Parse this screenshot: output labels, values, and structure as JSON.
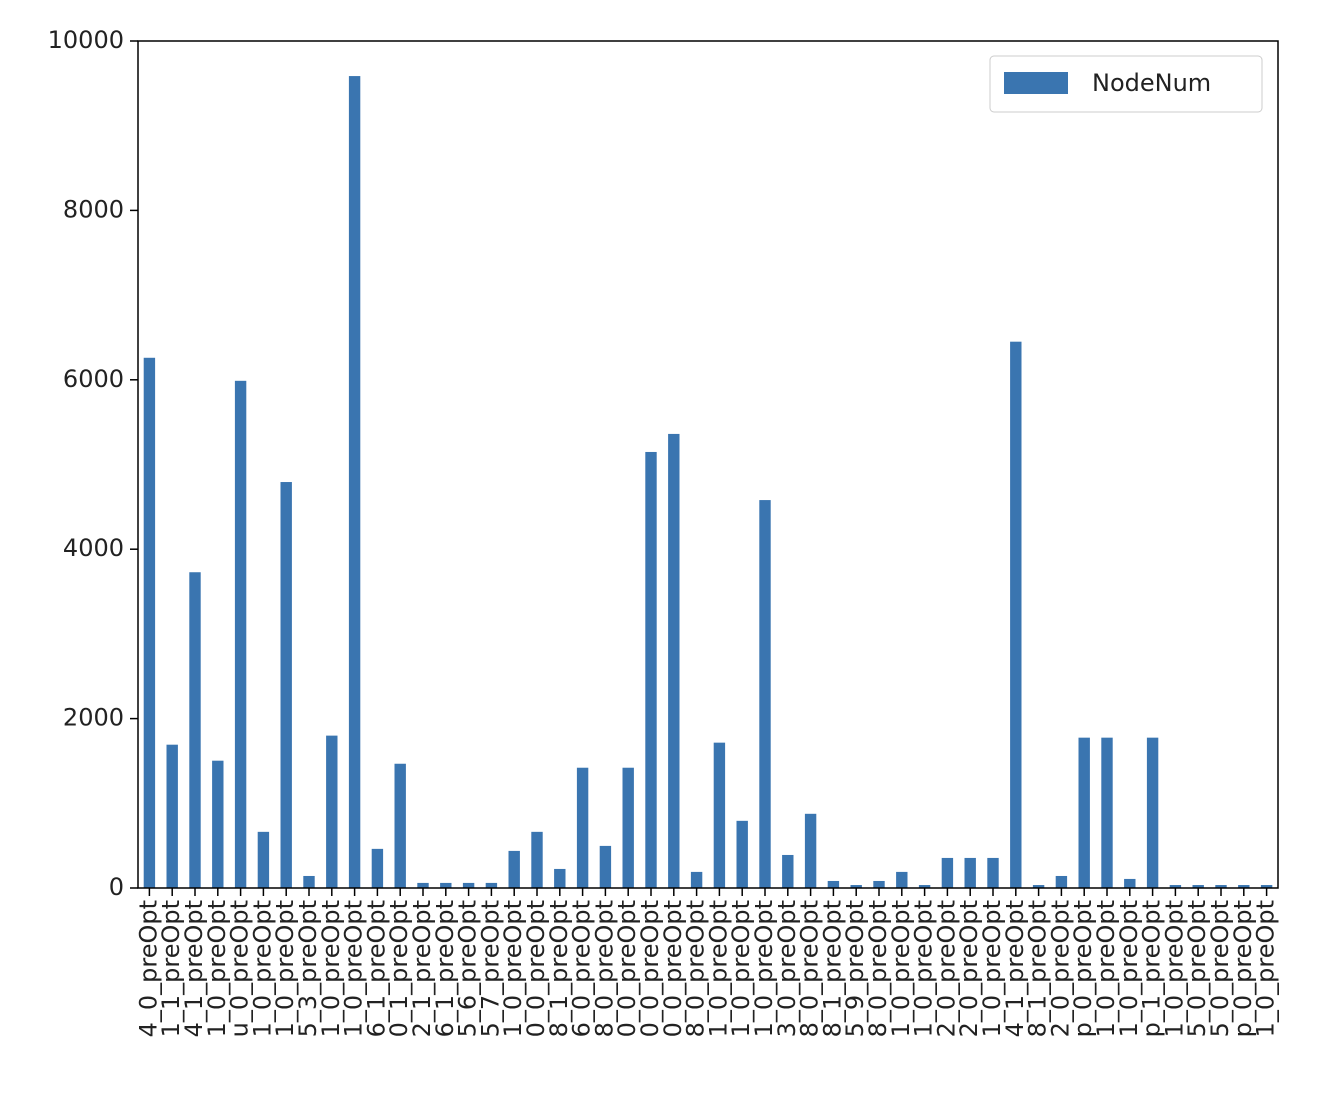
{
  "chart_data": {
    "type": "bar",
    "categories": [
      "4_0_preOpt",
      "1_1_preOpt",
      "4_1_preOpt",
      "1_0_preOpt",
      "u_0_preOpt",
      "1_0_preOpt",
      "1_0_preOpt",
      "5_3_preOpt",
      "1_0_preOpt",
      "1_0_preOpt",
      "6_1_preOpt",
      "0_1_preOpt",
      "2_1_preOpt",
      "6_1_preOpt",
      "5_6_preOpt",
      "5_7_preOpt",
      "1_0_preOpt",
      "0_0_preOpt",
      "8_1_preOpt",
      "6_0_preOpt",
      "8_0_preOpt",
      "0_0_preOpt",
      "0_0_preOpt",
      "0_0_preOpt",
      "8_0_preOpt",
      "1_0_preOpt",
      "1_0_preOpt",
      "1_0_preOpt",
      "3_0_preOpt",
      "8_0_preOpt",
      "8_1_preOpt",
      "5_9_preOpt",
      "8_0_preOpt",
      "1_0_preOpt",
      "1_0_preOpt",
      "2_0_preOpt",
      "2_0_preOpt",
      "1_0_preOpt",
      "4_1_preOpt",
      "8_1_preOpt",
      "2_0_preOpt",
      "p_0_preOpt",
      "1_0_preOpt",
      "1_0_preOpt",
      "p_1_preOpt",
      "1_0_preOpt",
      "5_0_preOpt",
      "5_0_preOpt",
      "p_0_preOpt",
      "1_0_preOpt"
    ],
    "series": [
      {
        "name": "NodeNum",
        "color": "#3a75b0",
        "values": [
          6260,
          1692,
          3728,
          1503,
          5988,
          663,
          4793,
          142,
          1799,
          9586,
          462,
          1467,
          60,
          60,
          60,
          60,
          438,
          663,
          225,
          1420,
          497,
          1420,
          5148,
          5361,
          190,
          1716,
          793,
          4580,
          390,
          876,
          83,
          35,
          83,
          190,
          35,
          355,
          355,
          355,
          6450,
          35,
          142,
          1775,
          1775,
          107,
          1775,
          35,
          35,
          35,
          35,
          35
        ]
      }
    ],
    "ylim": [
      0,
      10000
    ],
    "yticks": [
      0,
      2000,
      4000,
      6000,
      8000,
      10000
    ],
    "legend": "upper right"
  }
}
